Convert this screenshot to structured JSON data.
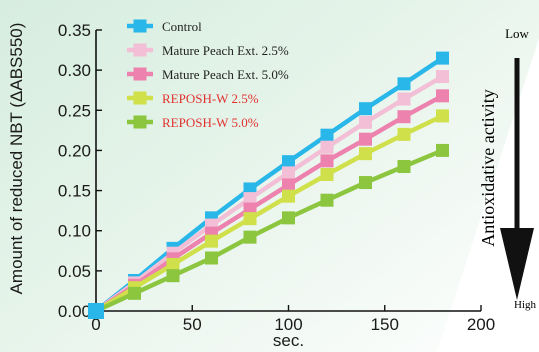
{
  "chart_data": {
    "type": "line",
    "title": "",
    "xlabel": "sec.",
    "ylabel": "Amount of reduced NBT (ΔABS550)",
    "xlim": [
      0,
      200
    ],
    "ylim": [
      0,
      0.35
    ],
    "xticks": [
      0,
      50,
      100,
      150,
      200
    ],
    "yticks": [
      "0.00",
      "0.05",
      "0.10",
      "0.15",
      "0.20",
      "0.25",
      "0.30",
      "0.35"
    ],
    "x": [
      0,
      20,
      40,
      60,
      80,
      100,
      120,
      140,
      160,
      180
    ],
    "series": [
      {
        "name": "Control",
        "color": "#29b6e8",
        "label_color": "#222222",
        "values": [
          0,
          0.038,
          0.078,
          0.116,
          0.152,
          0.186,
          0.219,
          0.252,
          0.283,
          0.315
        ]
      },
      {
        "name": "Mature Peach Ext. 2.5%",
        "color": "#f3bfd6",
        "label_color": "#222222",
        "values": [
          0,
          0.035,
          0.072,
          0.107,
          0.14,
          0.172,
          0.204,
          0.235,
          0.264,
          0.292
        ]
      },
      {
        "name": "Mature Peach Ext. 5.0%",
        "color": "#ec82ad",
        "label_color": "#222222",
        "values": [
          0,
          0.032,
          0.065,
          0.097,
          0.127,
          0.157,
          0.187,
          0.214,
          0.242,
          0.268
        ]
      },
      {
        "name": "REPOSH-W 2.5%",
        "color": "#cfe04a",
        "label_color": "#e0322f",
        "values": [
          0,
          0.029,
          0.058,
          0.087,
          0.115,
          0.143,
          0.17,
          0.196,
          0.22,
          0.243
        ]
      },
      {
        "name": "REPOSH-W 5.0%",
        "color": "#8cc63f",
        "label_color": "#e0322f",
        "values": [
          0,
          0.022,
          0.044,
          0.066,
          0.092,
          0.116,
          0.138,
          0.16,
          0.18,
          0.2
        ]
      }
    ],
    "legend_position": "top-left",
    "grid": false
  },
  "side": {
    "top_label": "Low",
    "title": "Antioxidative activity",
    "bottom_label": "High"
  }
}
